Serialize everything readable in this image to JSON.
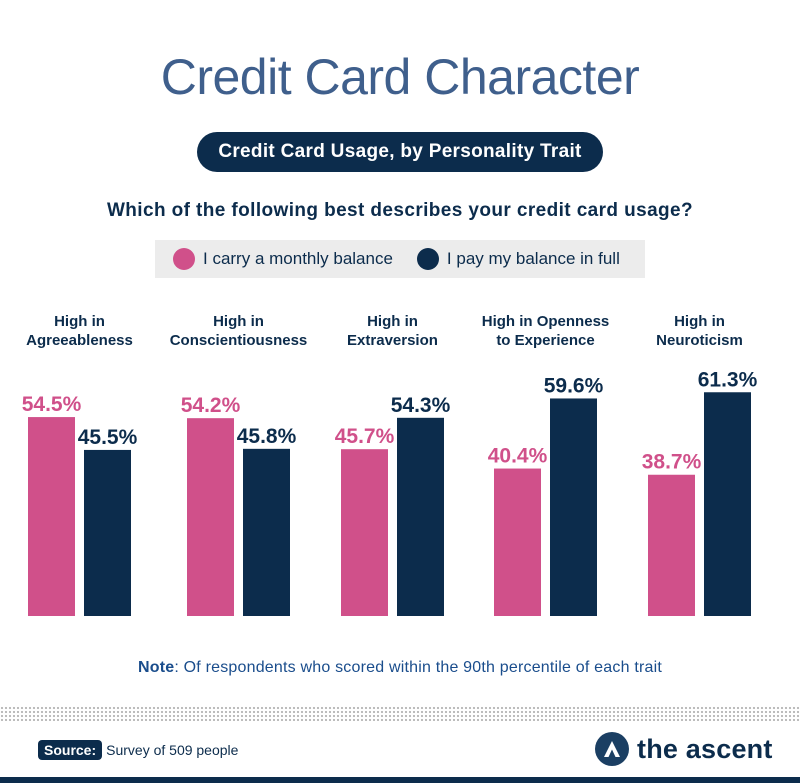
{
  "title": "Credit Card Character",
  "subtitle": "Credit Card Usage, by Personality Trait",
  "question": "Which of the following best describes your credit card usage?",
  "legend": [
    {
      "label": "I carry a monthly balance",
      "color": "#d0508a"
    },
    {
      "label": "I pay my balance in full",
      "color": "#0c2c4c"
    }
  ],
  "chart_data": {
    "type": "bar",
    "categories": [
      "High in\nAgreeableness",
      "High in\nConscientiousness",
      "High in\nExtraversion",
      "High in Openness\nto Experience",
      "High in\nNeuroticism"
    ],
    "series": [
      {
        "name": "I carry a monthly balance",
        "values": [
          54.5,
          54.2,
          45.7,
          40.4,
          38.7
        ],
        "labels": [
          "54.5%",
          "54.2%",
          "45.7%",
          "40.4%",
          "38.7%"
        ],
        "color": "#d0508a"
      },
      {
        "name": "I pay my balance in full",
        "values": [
          45.5,
          45.8,
          54.3,
          59.6,
          61.3
        ],
        "labels": [
          "45.5%",
          "45.8%",
          "54.3%",
          "59.6%",
          "61.3%"
        ],
        "color": "#0c2c4c"
      }
    ],
    "ylim": [
      0,
      100
    ],
    "grid": false,
    "legend_position": "top"
  },
  "note": {
    "label": "Note",
    "text": ": Of respondents who scored within the 90th percentile of each trait"
  },
  "source": {
    "label": "Source:",
    "text": "Survey of 509 people"
  },
  "brand": {
    "name": "the ascent",
    "icon": "ascent-logo-icon"
  }
}
